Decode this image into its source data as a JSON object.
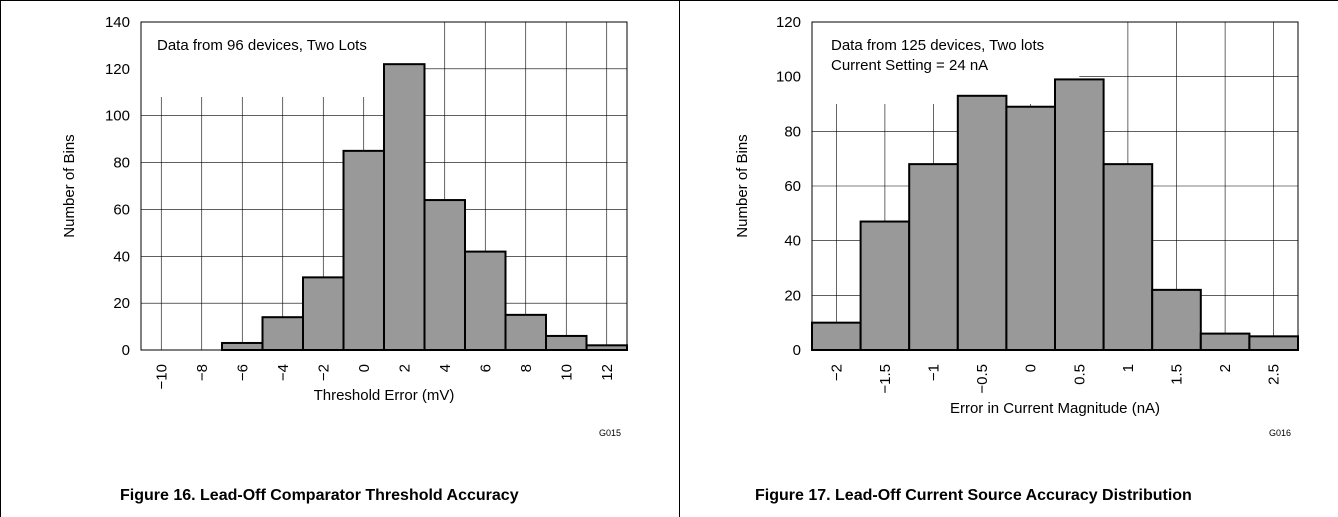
{
  "figures": [
    {
      "caption": "Figure 16. Lead-Off Comparator Threshold Accuracy",
      "code": "G015"
    },
    {
      "caption": "Figure 17. Lead-Off Current Source Accuracy Distribution",
      "code": "G016"
    }
  ],
  "chart_data": [
    {
      "type": "bar",
      "title": "",
      "annotation": [
        "Data from 96 devices, Two Lots"
      ],
      "xlabel": "Threshold Error (mV)",
      "ylabel": "Number of Bins",
      "xlim": [
        -11,
        13
      ],
      "ylim": [
        0,
        140
      ],
      "xticks": [
        -10,
        -8,
        -6,
        -4,
        -2,
        0,
        2,
        4,
        6,
        8,
        10,
        12
      ],
      "xtick_labels": [
        "−10",
        "−8",
        "−6",
        "−4",
        "−2",
        "0",
        "2",
        "4",
        "6",
        "8",
        "10",
        "12"
      ],
      "yticks": [
        0,
        20,
        40,
        60,
        80,
        100,
        120,
        140
      ],
      "bin_width": 2,
      "x": [
        -10,
        -8,
        -6,
        -4,
        -2,
        0,
        2,
        4,
        6,
        8,
        10,
        12
      ],
      "values": [
        0,
        0,
        3,
        14,
        31,
        85,
        122,
        64,
        42,
        15,
        6,
        2
      ],
      "bar_color": "#999999",
      "grid": true
    },
    {
      "type": "bar",
      "title": "",
      "annotation": [
        "Data from 125 devices, Two lots",
        "Current Setting = 24 nA"
      ],
      "xlabel": "Error in Current Magnitude (nA)",
      "ylabel": "Number of Bins",
      "xlim": [
        -2.25,
        2.75
      ],
      "ylim": [
        0,
        120
      ],
      "xticks": [
        -2,
        -1.5,
        -1,
        -0.5,
        0,
        0.5,
        1,
        1.5,
        2,
        2.5
      ],
      "xtick_labels": [
        "−2",
        "−1.5",
        "−1",
        "−0.5",
        "0",
        "0.5",
        "1",
        "1.5",
        "2",
        "2.5"
      ],
      "yticks": [
        0,
        20,
        40,
        60,
        80,
        100,
        120
      ],
      "bin_width": 0.5,
      "x": [
        -2,
        -1.5,
        -1,
        -0.5,
        0,
        0.5,
        1,
        1.5,
        2,
        2.5
      ],
      "values": [
        10,
        47,
        68,
        93,
        89,
        99,
        68,
        22,
        6,
        5
      ],
      "bar_color": "#999999",
      "grid": true
    }
  ]
}
